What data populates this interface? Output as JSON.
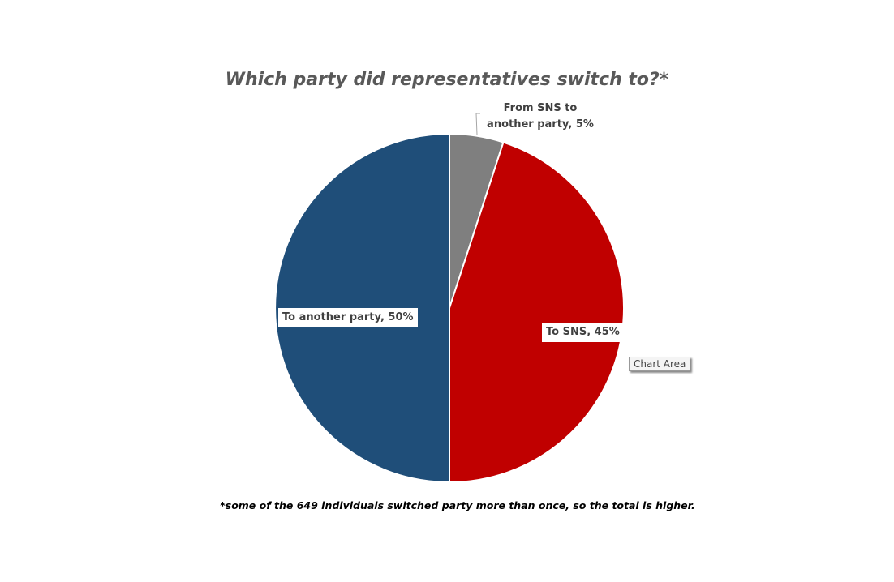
{
  "chart_data": {
    "type": "pie",
    "title": "Which party did representatives switch to?*",
    "values": [
      5,
      45,
      50
    ],
    "value_labels": [
      "From SNS to another party, 5%",
      "To SNS, 45%",
      "To another party, 50%"
    ],
    "colors": [
      "#7f7f7f",
      "#c00000",
      "#1f4e79"
    ],
    "footnote": "*some of the 649 individuals switched party more than once, so the total is higher.",
    "tooltip": "Chart Area"
  }
}
